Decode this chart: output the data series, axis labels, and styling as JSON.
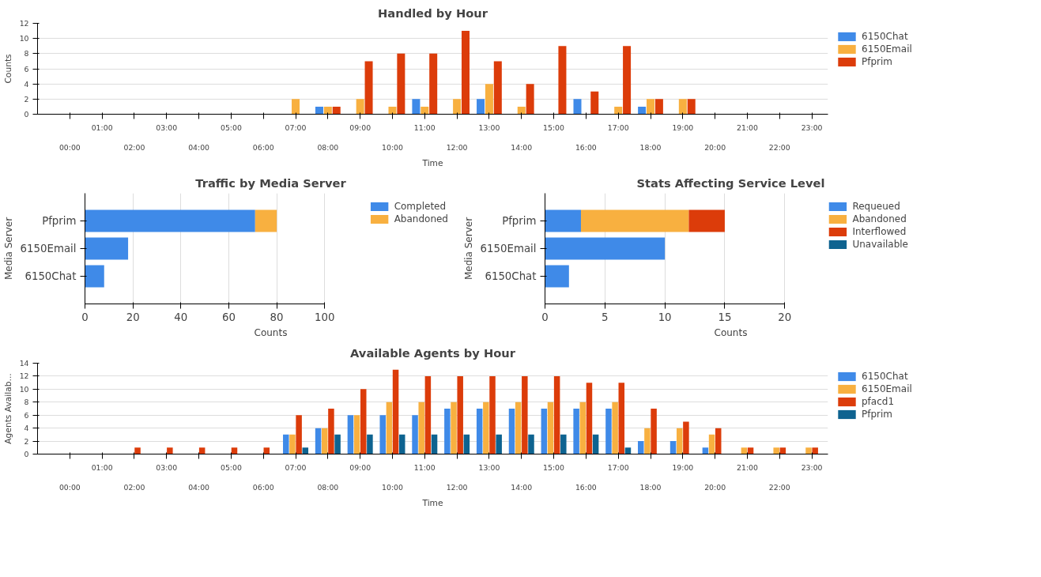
{
  "chart_data": [
    {
      "type": "bar",
      "title": "Handled by Hour",
      "xlabel": "Time",
      "ylabel": "Counts",
      "categories": [
        "00:00",
        "01:00",
        "02:00",
        "03:00",
        "04:00",
        "05:00",
        "06:00",
        "07:00",
        "08:00",
        "09:00",
        "10:00",
        "11:00",
        "12:00",
        "13:00",
        "14:00",
        "15:00",
        "16:00",
        "17:00",
        "18:00",
        "19:00",
        "20:00",
        "21:00",
        "22:00",
        "23:00"
      ],
      "series": [
        {
          "name": "6150Chat",
          "color": "#3f8ae8",
          "values": [
            null,
            null,
            null,
            null,
            null,
            null,
            null,
            null,
            1,
            null,
            null,
            2,
            null,
            2,
            null,
            null,
            2,
            null,
            1,
            null,
            null,
            null,
            null,
            null
          ]
        },
        {
          "name": "6150Email",
          "color": "#f8b040",
          "values": [
            null,
            null,
            null,
            null,
            null,
            null,
            null,
            2,
            1,
            2,
            1,
            1,
            2,
            4,
            1,
            null,
            null,
            1,
            2,
            2,
            null,
            null,
            null,
            null
          ]
        },
        {
          "name": "Pfprim",
          "color": "#dc3c0a",
          "values": [
            null,
            null,
            null,
            null,
            null,
            null,
            null,
            null,
            1,
            7,
            8,
            8,
            11,
            7,
            4,
            9,
            3,
            9,
            2,
            2,
            null,
            null,
            null,
            null
          ]
        }
      ],
      "ylim": [
        0,
        12
      ],
      "yticks": [
        0,
        2,
        4,
        6,
        8,
        10,
        12
      ],
      "grid": "y",
      "legend": "top right"
    },
    {
      "type": "bar",
      "orientation": "horizontal",
      "stacked": true,
      "title": "Traffic by Media Server",
      "xlabel": "Counts",
      "ylabel": "Media Server",
      "categories": [
        "Pfprim",
        "6150Email",
        "6150Chat"
      ],
      "series": [
        {
          "name": "Completed",
          "color": "#3f8ae8",
          "values": [
            71,
            18,
            8
          ]
        },
        {
          "name": "Abandoned",
          "color": "#f8b040",
          "values": [
            9,
            null,
            null
          ]
        }
      ],
      "xlim": [
        0,
        100
      ],
      "xticks": [
        0,
        20,
        40,
        60,
        80,
        100
      ],
      "grid": "x",
      "legend": "top right"
    },
    {
      "type": "bar",
      "orientation": "horizontal",
      "stacked": true,
      "title": "Stats Affecting Service Level",
      "xlabel": "Counts",
      "ylabel": "Media Server",
      "categories": [
        "Pfprim",
        "6150Email",
        "6150Chat"
      ],
      "series": [
        {
          "name": "Requeued",
          "color": "#3f8ae8",
          "values": [
            3,
            10,
            2
          ]
        },
        {
          "name": "Abandoned",
          "color": "#f8b040",
          "values": [
            9,
            null,
            null
          ]
        },
        {
          "name": "Interflowed",
          "color": "#dc3c0a",
          "values": [
            3,
            null,
            null
          ]
        },
        {
          "name": "Unavailable",
          "color": "#0e6390",
          "values": [
            null,
            null,
            null
          ]
        }
      ],
      "xlim": [
        0,
        20
      ],
      "xticks": [
        0,
        5,
        10,
        15,
        20
      ],
      "grid": "x",
      "legend": "top right"
    },
    {
      "type": "bar",
      "title": "Available Agents by Hour",
      "xlabel": "Time",
      "ylabel": "Agents Availab...",
      "categories": [
        "00:00",
        "01:00",
        "02:00",
        "03:00",
        "04:00",
        "05:00",
        "06:00",
        "07:00",
        "08:00",
        "09:00",
        "10:00",
        "11:00",
        "12:00",
        "13:00",
        "14:00",
        "15:00",
        "16:00",
        "17:00",
        "18:00",
        "19:00",
        "20:00",
        "21:00",
        "22:00",
        "23:00"
      ],
      "series": [
        {
          "name": "6150Chat",
          "color": "#3f8ae8",
          "values": [
            null,
            null,
            null,
            null,
            null,
            null,
            null,
            3,
            4,
            6,
            6,
            6,
            7,
            7,
            7,
            7,
            7,
            7,
            2,
            2,
            1,
            null,
            null,
            null
          ]
        },
        {
          "name": "6150Email",
          "color": "#f8b040",
          "values": [
            null,
            null,
            null,
            null,
            null,
            null,
            null,
            3,
            4,
            6,
            8,
            8,
            8,
            8,
            8,
            8,
            8,
            8,
            4,
            4,
            3,
            1,
            1,
            1
          ]
        },
        {
          "name": "pfacd1",
          "color": "#dc3c0a",
          "values": [
            null,
            null,
            1,
            1,
            1,
            1,
            1,
            6,
            7,
            10,
            13,
            12,
            12,
            12,
            12,
            12,
            11,
            11,
            7,
            5,
            4,
            1,
            1,
            1
          ]
        },
        {
          "name": "Pfprim",
          "color": "#0e6390",
          "values": [
            null,
            null,
            null,
            null,
            null,
            null,
            null,
            1,
            3,
            3,
            3,
            3,
            3,
            3,
            3,
            3,
            3,
            1,
            null,
            null,
            null,
            null,
            null,
            null
          ]
        }
      ],
      "ylim": [
        0,
        14
      ],
      "yticks": [
        0,
        2,
        4,
        6,
        8,
        10,
        12,
        14
      ],
      "grid": "y",
      "legend": "top right"
    }
  ]
}
